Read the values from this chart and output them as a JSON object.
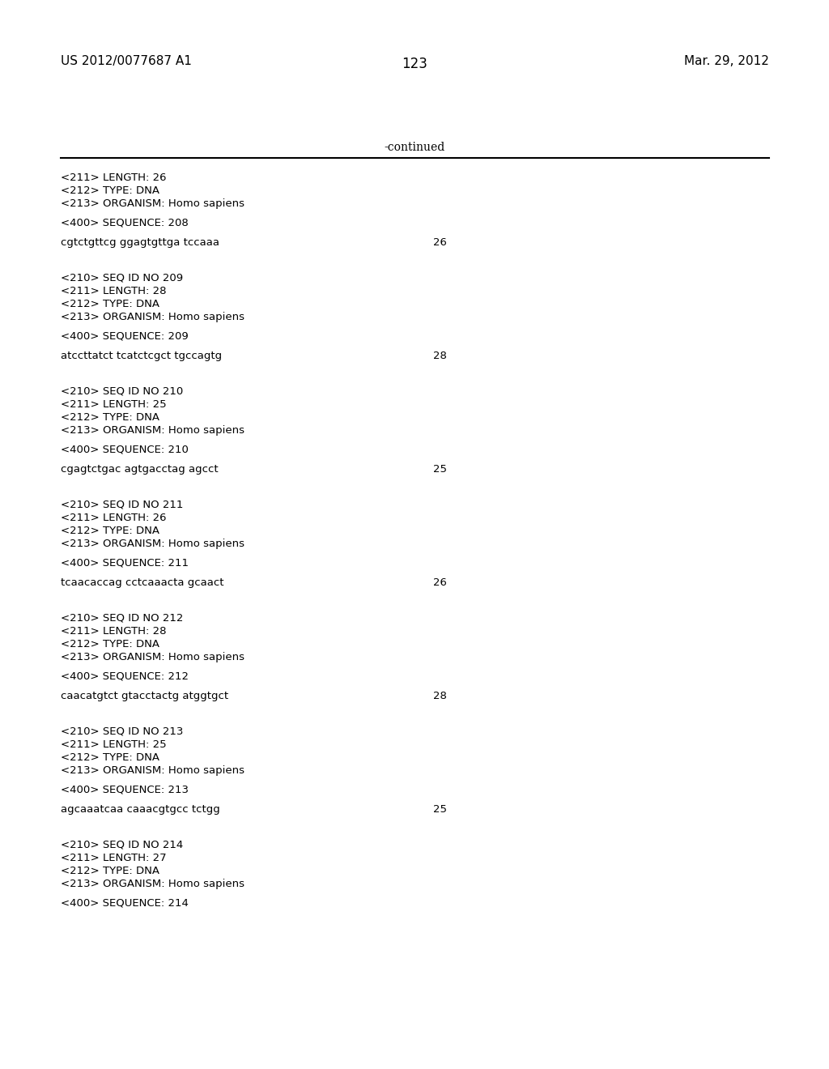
{
  "background_color": "#ffffff",
  "header_left": "US 2012/0077687 A1",
  "header_right": "Mar. 29, 2012",
  "page_number": "123",
  "continued_text": "-continued",
  "header_fontsize": 11,
  "page_num_fontsize": 12,
  "continued_fontsize": 10,
  "content_fontsize": 9.5,
  "content_blocks": [
    {
      "lines": [
        "<211> LENGTH: 26",
        "<212> TYPE: DNA",
        "<213> ORGANISM: Homo sapiens"
      ],
      "sequence_label": "<400> SEQUENCE: 208",
      "sequence": "cgtctgttcg ggagtgttga tccaaa",
      "seq_num": "26"
    },
    {
      "lines": [
        "<210> SEQ ID NO 209",
        "<211> LENGTH: 28",
        "<212> TYPE: DNA",
        "<213> ORGANISM: Homo sapiens"
      ],
      "sequence_label": "<400> SEQUENCE: 209",
      "sequence": "atccttatct tcatctcgct tgccagtg",
      "seq_num": "28"
    },
    {
      "lines": [
        "<210> SEQ ID NO 210",
        "<211> LENGTH: 25",
        "<212> TYPE: DNA",
        "<213> ORGANISM: Homo sapiens"
      ],
      "sequence_label": "<400> SEQUENCE: 210",
      "sequence": "cgagtctgac agtgacctag agcct",
      "seq_num": "25"
    },
    {
      "lines": [
        "<210> SEQ ID NO 211",
        "<211> LENGTH: 26",
        "<212> TYPE: DNA",
        "<213> ORGANISM: Homo sapiens"
      ],
      "sequence_label": "<400> SEQUENCE: 211",
      "sequence": "tcaacaccag cctcaaacta gcaact",
      "seq_num": "26"
    },
    {
      "lines": [
        "<210> SEQ ID NO 212",
        "<211> LENGTH: 28",
        "<212> TYPE: DNA",
        "<213> ORGANISM: Homo sapiens"
      ],
      "sequence_label": "<400> SEQUENCE: 212",
      "sequence": "caacatgtct gtacctactg atggtgct",
      "seq_num": "28"
    },
    {
      "lines": [
        "<210> SEQ ID NO 213",
        "<211> LENGTH: 25",
        "<212> TYPE: DNA",
        "<213> ORGANISM: Homo sapiens"
      ],
      "sequence_label": "<400> SEQUENCE: 213",
      "sequence": "agcaaatcaa caaacgtgcc tctgg",
      "seq_num": "25"
    },
    {
      "lines": [
        "<210> SEQ ID NO 214",
        "<211> LENGTH: 27",
        "<212> TYPE: DNA",
        "<213> ORGANISM: Homo sapiens"
      ],
      "sequence_label": "<400> SEQUENCE: 214",
      "sequence": null,
      "seq_num": null
    }
  ]
}
